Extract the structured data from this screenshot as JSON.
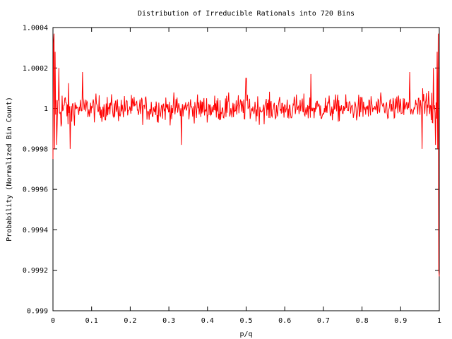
{
  "chart_data": {
    "type": "line",
    "title": "Distribution of Irreducible Rationals into 720 Bins",
    "xlabel": "p/q",
    "ylabel": "Probability (Normalized Bin Count)",
    "xlim": [
      0,
      1
    ],
    "ylim": [
      0.999,
      1.0004
    ],
    "xticks": [
      0,
      0.1,
      0.2,
      0.3,
      0.4,
      0.5,
      0.6,
      0.7,
      0.8,
      0.9,
      1
    ],
    "xtick_labels": [
      "0",
      "0.1",
      "0.2",
      "0.3",
      "0.4",
      "0.5",
      "0.6",
      "0.7",
      "0.8",
      "0.9",
      "1"
    ],
    "yticks": [
      0.999,
      0.9992,
      0.9994,
      0.9996,
      0.9998,
      1,
      1.0002,
      1.0004
    ],
    "ytick_labels": [
      "0.999",
      "0.9992",
      "0.9994",
      "0.9996",
      "0.9998",
      "1",
      "1.0002",
      "1.0004"
    ],
    "grid": false,
    "legend": "none",
    "series": [
      {
        "color": "#ff0000",
        "bins": 720,
        "baseline": 1.0,
        "typical_deviation": 4e-05,
        "keypoints": [
          {
            "x": 0.0,
            "y": 0.99975
          },
          {
            "x": 0.001,
            "y": 1.00032
          },
          {
            "x": 0.0025,
            "y": 1.00037
          },
          {
            "x": 0.004,
            "y": 0.9998
          },
          {
            "x": 0.006,
            "y": 1.00028
          },
          {
            "x": 0.01,
            "y": 0.99982
          },
          {
            "x": 0.015,
            "y": 1.0002
          },
          {
            "x": 0.045,
            "y": 0.9998
          },
          {
            "x": 0.077,
            "y": 1.00018
          },
          {
            "x": 0.333,
            "y": 0.99982
          },
          {
            "x": 0.499,
            "y": 1.00015
          },
          {
            "x": 0.5,
            "y": 0.99975
          },
          {
            "x": 0.501,
            "y": 1.00015
          },
          {
            "x": 0.667,
            "y": 1.00017
          },
          {
            "x": 0.923,
            "y": 1.00018
          },
          {
            "x": 0.955,
            "y": 0.9998
          },
          {
            "x": 0.985,
            "y": 1.0002
          },
          {
            "x": 0.99,
            "y": 0.99982
          },
          {
            "x": 0.994,
            "y": 1.00028
          },
          {
            "x": 0.996,
            "y": 0.9998
          },
          {
            "x": 0.9975,
            "y": 1.00037
          },
          {
            "x": 0.999,
            "y": 0.9992
          },
          {
            "x": 1.0,
            "y": 0.99917
          }
        ]
      }
    ]
  }
}
